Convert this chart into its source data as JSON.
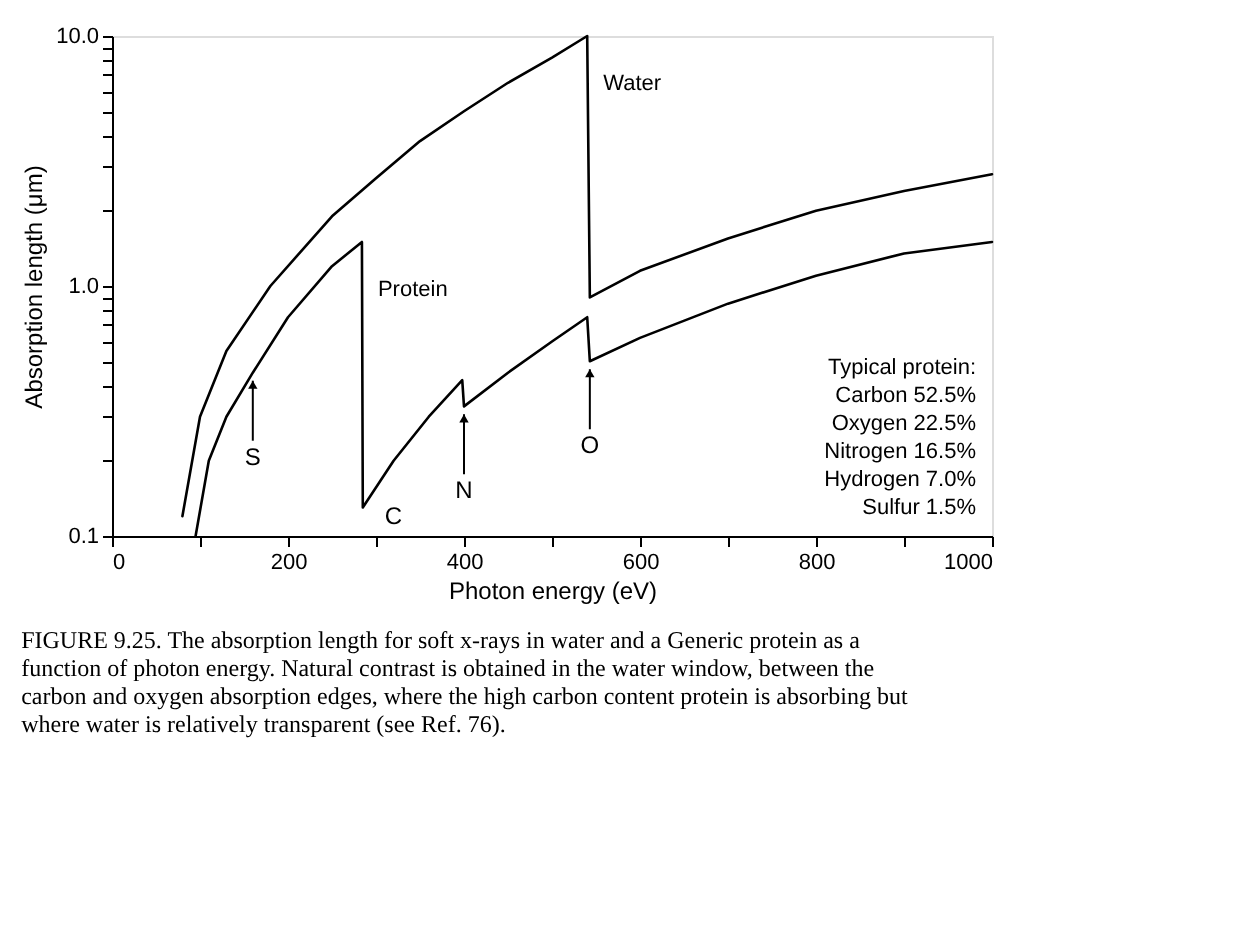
{
  "chart_data": {
    "type": "line",
    "xlabel": "Photon energy (eV)",
    "ylabel": "Absorption length (μm)",
    "log": "y",
    "marker": "none",
    "line_style": "solid",
    "xlim": [
      0,
      1000
    ],
    "xticks": [
      0,
      {
        "value": 100,
        "label": null
      },
      200,
      {
        "value": 300,
        "label": null
      },
      400,
      {
        "value": 500,
        "label": null
      },
      600,
      {
        "value": 700,
        "label": null
      },
      800,
      {
        "value": 900,
        "label": null
      },
      1000
    ],
    "ylim": [
      0.1,
      10
    ],
    "yticks": [
      {
        "value": 0.1,
        "label": "0.1"
      },
      {
        "value": 0.2,
        "label": null
      },
      {
        "value": 0.3,
        "label": null
      },
      {
        "value": 0.4,
        "label": null
      },
      {
        "value": 0.5,
        "label": null
      },
      {
        "value": 0.6,
        "label": null
      },
      {
        "value": 0.7,
        "label": null
      },
      {
        "value": 0.8,
        "label": null
      },
      {
        "value": 0.9,
        "label": null
      },
      {
        "value": 1,
        "label": "1.0"
      },
      {
        "value": 2,
        "label": null
      },
      {
        "value": 3,
        "label": null
      },
      {
        "value": 4,
        "label": null
      },
      {
        "value": 5,
        "label": null
      },
      {
        "value": 6,
        "label": null
      },
      {
        "value": 7,
        "label": null
      },
      {
        "value": 8,
        "label": null
      },
      {
        "value": 9,
        "label": null
      },
      {
        "value": 10,
        "label": "10.0"
      }
    ],
    "series": [
      {
        "name": "Water",
        "color": "#000000",
        "x": [
          80,
          100,
          130,
          180,
          250,
          300,
          350,
          400,
          450,
          500,
          540,
          543,
          600,
          700,
          800,
          900,
          1000
        ],
        "values": [
          0.12,
          0.3,
          0.55,
          1.0,
          1.9,
          2.7,
          3.8,
          5.0,
          6.5,
          8.2,
          10,
          0.9,
          1.15,
          1.55,
          2.0,
          2.4,
          2.8
        ]
      },
      {
        "name": "Protein",
        "color": "#000000",
        "x": [
          95,
          110,
          130,
          160,
          200,
          250,
          284,
          285,
          320,
          360,
          398,
          400,
          450,
          500,
          540,
          543,
          600,
          700,
          800,
          900,
          1000
        ],
        "values": [
          0.1,
          0.2,
          0.3,
          0.45,
          0.75,
          1.2,
          1.5,
          0.13,
          0.2,
          0.3,
          0.42,
          0.33,
          0.45,
          0.6,
          0.75,
          0.5,
          0.62,
          0.85,
          1.1,
          1.35,
          1.5
        ]
      }
    ],
    "annotations": [
      "Typical protein:",
      "Carbon 52.5%",
      "Oxygen 22.5%",
      "Nitrogen 16.5%",
      "Hydrogen 7.0%",
      "Sulfur 1.5%",
      {
        "text": "S",
        "x": 160,
        "y": 0.45
      },
      {
        "text": "C",
        "x": 285,
        "y": 0.13
      },
      {
        "text": "N",
        "x": 400,
        "y": 0.33
      },
      {
        "text": "O",
        "x": 543,
        "y": 0.5
      },
      "FIGURE 9.25. The absorption length for soft x-rays in water and a Generic protein as a function of photon energy. Natural contrast is obtained in the water window, between the carbon and oxygen absorption edges, where the high carbon content protein is absorbing but where water is relatively transparent (see Ref. 76)."
    ]
  }
}
